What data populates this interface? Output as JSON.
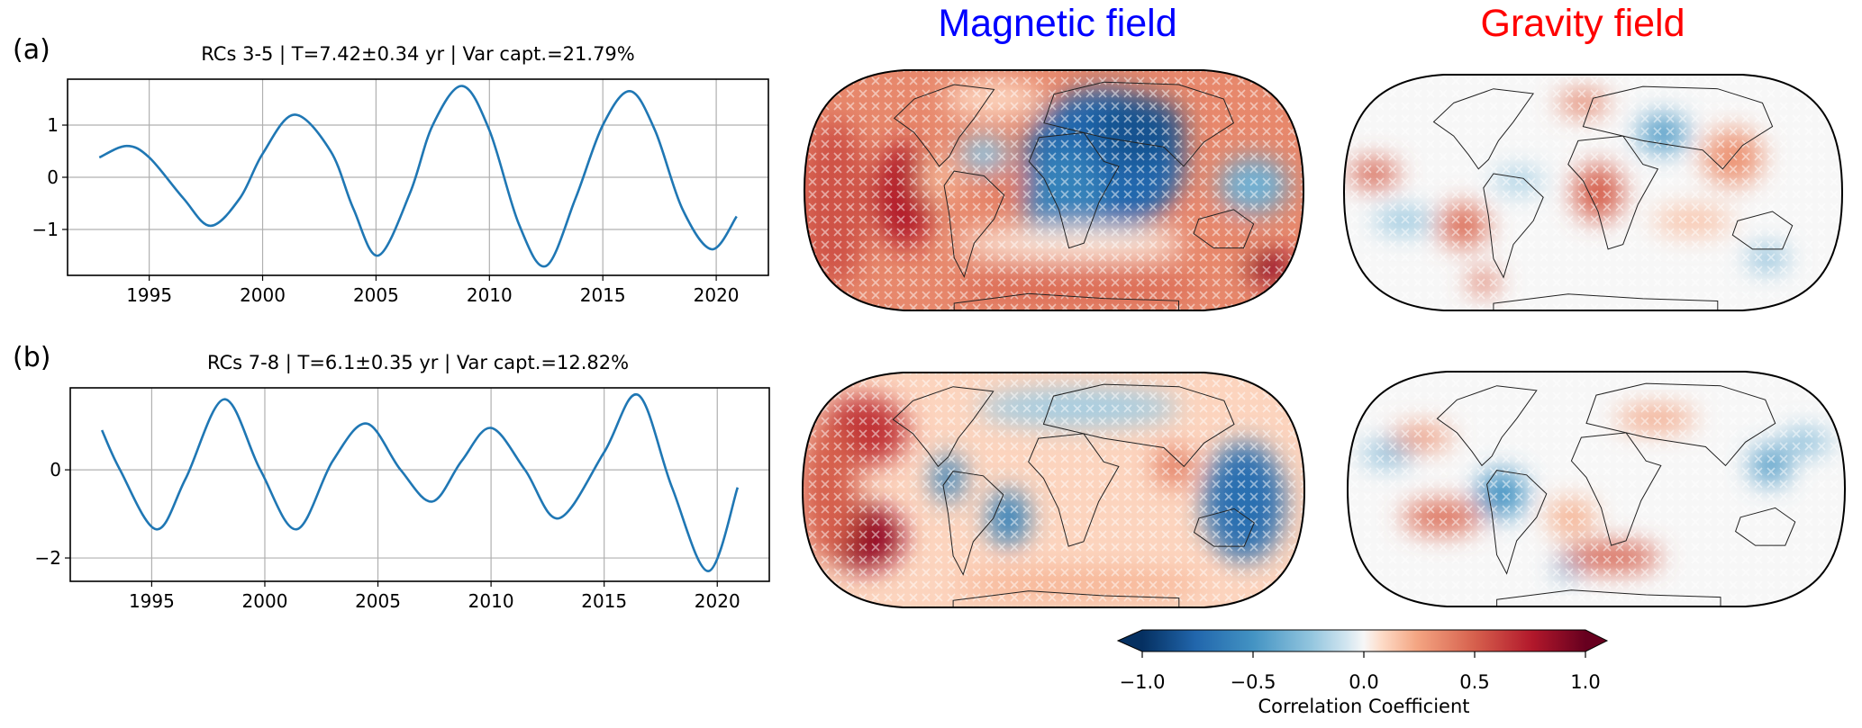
{
  "column_titles": {
    "magnetic": {
      "text": "Magnetic field",
      "color": "#0000ff"
    },
    "gravity": {
      "text": "Gravity field",
      "color": "#ff0000"
    }
  },
  "chart_data": [
    {
      "type": "line",
      "panel_label": "(a)",
      "title": "RCs 3-5 | T=7.42±0.34 yr | Var capt.=21.79%",
      "xlabel": "",
      "ylabel": "",
      "xlim": [
        1991.4,
        2022.3
      ],
      "ylim": [
        -1.88,
        1.88
      ],
      "xticks": [
        1995,
        2000,
        2005,
        2010,
        2015,
        2020
      ],
      "yticks": [
        -1,
        0,
        1
      ],
      "ytick_labels": [
        "−1",
        "0",
        "1"
      ],
      "grid": true,
      "line_color": "#1f77b4",
      "series": [
        {
          "name": "RCs 3-5",
          "x": [
            1992.8,
            1994.0,
            1995.0,
            1996.5,
            1997.7,
            1999.0,
            2000.0,
            2001.4,
            2003.0,
            2004.0,
            2005.1,
            2006.5,
            2007.5,
            2008.8,
            2010.0,
            2011.3,
            2012.5,
            2013.8,
            2015.0,
            2016.2,
            2017.3,
            2018.5,
            2019.8,
            2020.9
          ],
          "y": [
            0.38,
            0.6,
            0.38,
            -0.4,
            -0.93,
            -0.4,
            0.45,
            1.2,
            0.5,
            -0.6,
            -1.5,
            -0.3,
            1.0,
            1.75,
            0.9,
            -0.9,
            -1.7,
            -0.4,
            1.0,
            1.65,
            0.9,
            -0.6,
            -1.38,
            -0.75
          ]
        }
      ]
    },
    {
      "type": "line",
      "panel_label": "(b)",
      "title": "RCs 7-8 | T=6.1±0.35 yr | Var capt.=12.82%",
      "xlabel": "",
      "ylabel": "",
      "xlim": [
        1991.4,
        2022.3
      ],
      "ylim": [
        -2.53,
        1.86
      ],
      "xticks": [
        1995,
        2000,
        2005,
        2010,
        2015,
        2020
      ],
      "yticks": [
        -2,
        0
      ],
      "ytick_labels": [
        "−2",
        "0"
      ],
      "grid": true,
      "line_color": "#1f77b4",
      "series": [
        {
          "name": "RCs 7-8",
          "x": [
            1992.8,
            1993.6,
            1995.2,
            1996.5,
            1998.2,
            1999.8,
            2001.4,
            2003.0,
            2004.5,
            2006.0,
            2007.4,
            2008.7,
            2010.0,
            2011.5,
            2013.0,
            2015.0,
            2016.5,
            2018.0,
            2019.6,
            2020.9
          ],
          "y": [
            0.9,
            0.0,
            -1.35,
            -0.2,
            1.6,
            0.0,
            -1.35,
            0.2,
            1.05,
            0.0,
            -0.72,
            0.2,
            0.95,
            0.0,
            -1.1,
            0.4,
            1.7,
            -0.4,
            -2.3,
            -0.4
          ]
        }
      ]
    },
    {
      "type": "heatmap",
      "title": "Magnetic field (a)",
      "projection": "global map",
      "hatching": "white x marks (non-significant areas)",
      "features": [
        {
          "region": "Eurasia / Africa",
          "value": -0.7
        },
        {
          "region": "East Pacific off South America",
          "value": 0.75
        },
        {
          "region": "Central Pacific",
          "value": 0.55
        },
        {
          "region": "South Atlantic / Southern Ocean",
          "value": 0.4
        },
        {
          "region": "SE of Australia",
          "value": 0.85
        },
        {
          "region": "Indonesia / West Pacific",
          "value": -0.3
        }
      ]
    },
    {
      "type": "heatmap",
      "title": "Gravity field (a)",
      "projection": "global map",
      "hatching": "white x marks (non-significant areas)",
      "features": [
        {
          "region": "Central Africa",
          "value": 0.45
        },
        {
          "region": "Central Pacific",
          "value": 0.45
        },
        {
          "region": "South America",
          "value": 0.45
        },
        {
          "region": "Central Asia",
          "value": -0.4
        },
        {
          "region": "South Pacific",
          "value": 0.5
        },
        {
          "region": "Southeast Asia",
          "value": 0.3
        }
      ]
    },
    {
      "type": "heatmap",
      "title": "Magnetic field (b)",
      "projection": "global map",
      "hatching": "white x marks (non-significant areas)",
      "features": [
        {
          "region": "Eastern Pacific",
          "value": 0.8
        },
        {
          "region": "North Pacific / Alaska",
          "value": 0.6
        },
        {
          "region": "Australia / West Pacific",
          "value": -0.7
        },
        {
          "region": "Northern South America",
          "value": -0.55
        },
        {
          "region": "South Atlantic",
          "value": -0.6
        },
        {
          "region": "India",
          "value": 0.4
        }
      ]
    },
    {
      "type": "heatmap",
      "title": "Gravity field (b)",
      "projection": "global map",
      "hatching": "white x marks (non-significant areas)",
      "features": [
        {
          "region": "Amazon",
          "value": -0.5
        },
        {
          "region": "South Pacific",
          "value": 0.5
        },
        {
          "region": "South Atlantic / Southern Indian Ocean",
          "value": 0.5
        },
        {
          "region": "Philippines",
          "value": -0.45
        },
        {
          "region": "South Atlantic small patch",
          "value": -0.45
        }
      ]
    }
  ],
  "colorbar": {
    "label": "Correlation Coefficient",
    "range": [
      -1.0,
      1.0
    ],
    "colormap": "RdBu_r",
    "extend": "both",
    "ticks": [
      -1.0,
      -0.5,
      0.0,
      0.5,
      1.0
    ],
    "tick_labels": [
      "−1.0",
      "−0.5",
      "0.0",
      "0.5",
      "1.0"
    ]
  }
}
